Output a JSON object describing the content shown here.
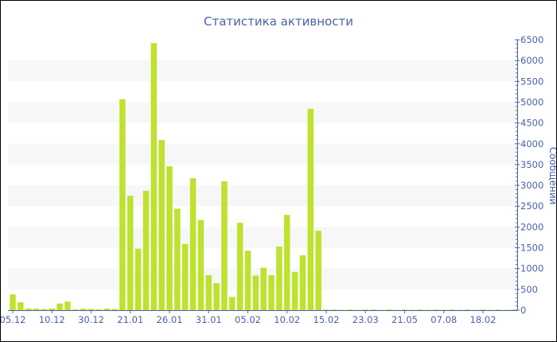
{
  "chart_data": {
    "type": "bar",
    "title": "Статистика активности",
    "ylabel": "Сообщений",
    "xlabel": "",
    "ylim": [
      0,
      6500
    ],
    "y_ticks": [
      0,
      500,
      1000,
      1500,
      2000,
      2500,
      3000,
      3500,
      4000,
      4500,
      5000,
      5500,
      6000,
      6500
    ],
    "y_axis_side": "right",
    "grid": "alternating horizontal bands",
    "x_tick_labels": [
      "05.12",
      "10.12",
      "30.12",
      "21.01",
      "26.01",
      "31.01",
      "05.02",
      "10.02",
      "15.02",
      "23.03",
      "21.05",
      "07.08",
      "18.02"
    ],
    "x_tick_every": 5,
    "values": [
      380,
      190,
      40,
      40,
      30,
      40,
      160,
      205,
      20,
      35,
      30,
      20,
      40,
      30,
      5070,
      2750,
      1480,
      2870,
      6420,
      4090,
      3460,
      2440,
      1590,
      3170,
      2170,
      840,
      650,
      3100,
      320,
      2100,
      1430,
      830,
      1020,
      840,
      1530,
      2290,
      920,
      1320,
      4840,
      1910,
      15,
      15,
      10,
      15,
      10,
      15,
      15,
      10,
      15,
      10,
      15,
      10,
      15,
      10,
      15,
      10,
      15,
      10,
      15,
      10,
      15,
      10,
      15,
      10,
      15
    ],
    "colors": {
      "bar": "#bde22f",
      "axis": "#4a62a8",
      "title": "#4a62a8",
      "band": "#f7f7f7"
    }
  }
}
